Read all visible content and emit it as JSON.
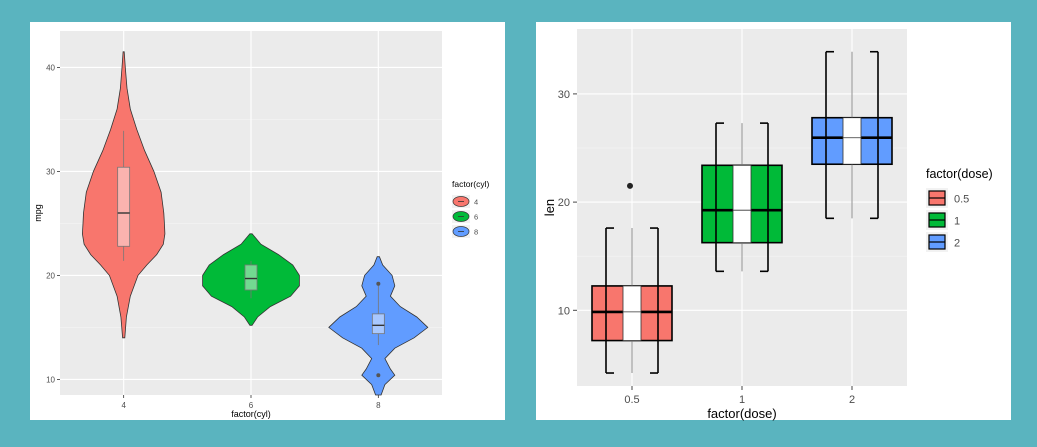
{
  "chart_data": [
    {
      "type": "violin",
      "xlabel": "factor(cyl)",
      "ylabel": "mpg",
      "categories": [
        "4",
        "6",
        "8"
      ],
      "ylim": [
        8.5,
        43.5
      ],
      "yticks": [
        "10",
        "20",
        "30",
        "40"
      ],
      "legend": {
        "title": "factor(cyl)",
        "position": "right",
        "labels": [
          "4",
          "6",
          "8"
        ]
      },
      "colors": [
        "#f8766d",
        "#00ba38",
        "#619cff"
      ],
      "grid": true,
      "series": [
        {
          "category": "4",
          "range": [
            14,
            41.5
          ],
          "box": {
            "q1": 22.8,
            "median": 26.0,
            "q3": 30.4,
            "whisker_low": 21.4,
            "whisker_high": 33.9
          },
          "outliers": [],
          "density": [
            [
              14,
              0.02
            ],
            [
              16,
              0.05
            ],
            [
              18,
              0.12
            ],
            [
              20,
              0.26
            ],
            [
              21,
              0.42
            ],
            [
              22,
              0.6
            ],
            [
              23,
              0.72
            ],
            [
              24,
              0.75
            ],
            [
              25,
              0.74
            ],
            [
              26,
              0.73
            ],
            [
              28,
              0.68
            ],
            [
              30,
              0.55
            ],
            [
              32,
              0.38
            ],
            [
              34,
              0.24
            ],
            [
              36,
              0.12
            ],
            [
              38,
              0.06
            ],
            [
              40,
              0.03
            ],
            [
              41.5,
              0.01
            ]
          ]
        },
        {
          "category": "6",
          "range": [
            15.2,
            24
          ],
          "box": {
            "q1": 18.6,
            "median": 19.7,
            "q3": 21.0,
            "whisker_low": 17.8,
            "whisker_high": 21.4
          },
          "outliers": [],
          "density": [
            [
              15.2,
              0.02
            ],
            [
              16,
              0.12
            ],
            [
              17,
              0.35
            ],
            [
              18,
              0.72
            ],
            [
              19,
              0.88
            ],
            [
              20,
              0.88
            ],
            [
              21,
              0.76
            ],
            [
              22,
              0.5
            ],
            [
              23,
              0.18
            ],
            [
              24,
              0.02
            ]
          ]
        },
        {
          "category": "8",
          "range": [
            8.5,
            21.8
          ],
          "box": {
            "q1": 14.4,
            "median": 15.2,
            "q3": 16.3,
            "whisker_low": 13.3,
            "whisker_high": 19.2
          },
          "outliers": [
            10.4,
            19.2
          ],
          "density": [
            [
              8.5,
              0.05
            ],
            [
              9.5,
              0.12
            ],
            [
              10.4,
              0.3
            ],
            [
              11,
              0.22
            ],
            [
              12,
              0.12
            ],
            [
              13,
              0.3
            ],
            [
              14,
              0.65
            ],
            [
              15,
              0.9
            ],
            [
              16,
              0.7
            ],
            [
              17,
              0.4
            ],
            [
              18,
              0.22
            ],
            [
              19,
              0.3
            ],
            [
              20,
              0.25
            ],
            [
              21,
              0.08
            ],
            [
              21.8,
              0.02
            ]
          ]
        }
      ]
    },
    {
      "type": "box",
      "xlabel": "factor(dose)",
      "ylabel": "len",
      "categories": [
        "0.5",
        "1",
        "2"
      ],
      "ylim": [
        3,
        36
      ],
      "yticks": [
        "10",
        "20",
        "30"
      ],
      "legend": {
        "title": "factor(dose)",
        "position": "right",
        "labels": [
          "0.5",
          "1",
          "2"
        ]
      },
      "colors": [
        "#f8766d",
        "#00ba38",
        "#619cff"
      ],
      "grid": true,
      "series": [
        {
          "category": "0.5",
          "box": {
            "q1": 7.2,
            "median": 9.85,
            "q3": 12.25,
            "whisker_low": 4.2,
            "whisker_high": 17.6
          },
          "outliers": [
            21.5
          ]
        },
        {
          "category": "1",
          "box": {
            "q1": 16.25,
            "median": 19.25,
            "q3": 23.4,
            "whisker_low": 13.6,
            "whisker_high": 27.3
          },
          "outliers": []
        },
        {
          "category": "2",
          "box": {
            "q1": 23.5,
            "median": 25.95,
            "q3": 27.8,
            "whisker_low": 18.5,
            "whisker_high": 33.9
          },
          "outliers": []
        }
      ]
    }
  ]
}
